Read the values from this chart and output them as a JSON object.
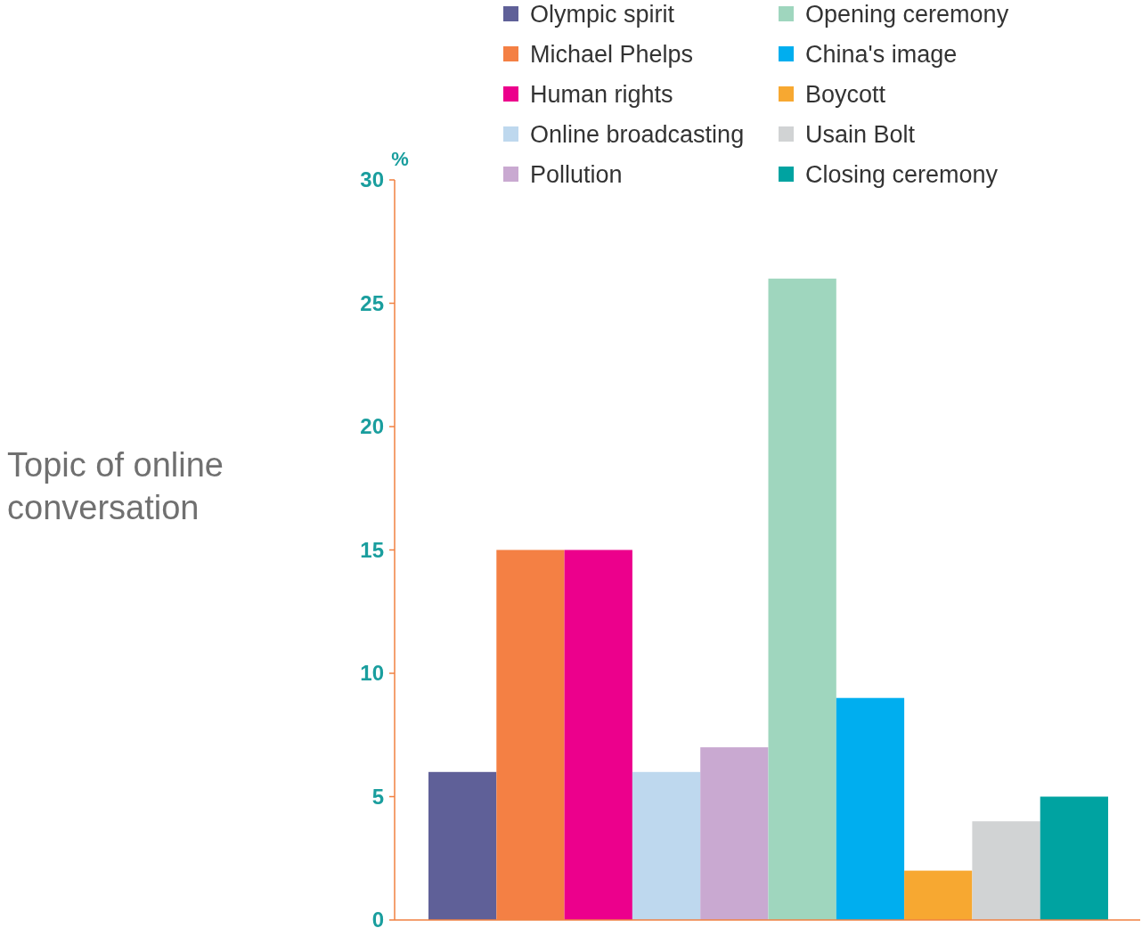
{
  "chart_data": {
    "type": "bar",
    "title": "Topic of online conversation",
    "ylabel": "%",
    "categories": [
      null,
      null,
      null,
      null,
      null,
      null,
      null,
      null,
      null,
      null
    ],
    "series": [
      {
        "name": "Olympic spirit",
        "color": "#5f6098",
        "values": [
          6,
          null,
          null,
          null,
          null,
          null,
          null,
          null,
          null,
          null
        ]
      },
      {
        "name": "Michael Phelps",
        "color": "#f48044",
        "values": [
          null,
          15,
          null,
          null,
          null,
          null,
          null,
          null,
          null,
          null
        ]
      },
      {
        "name": "Human rights",
        "color": "#ec008c",
        "values": [
          null,
          null,
          15,
          null,
          null,
          null,
          null,
          null,
          null,
          null
        ]
      },
      {
        "name": "Online broadcasting",
        "color": "#bed8ee",
        "values": [
          null,
          null,
          null,
          6,
          null,
          null,
          null,
          null,
          null,
          null
        ]
      },
      {
        "name": "Pollution",
        "color": "#c9a9d1",
        "values": [
          null,
          null,
          null,
          null,
          7,
          null,
          null,
          null,
          null,
          null
        ]
      },
      {
        "name": "Opening ceremony",
        "color": "#9fd6be",
        "values": [
          null,
          null,
          null,
          null,
          null,
          26,
          null,
          null,
          null,
          null
        ]
      },
      {
        "name": "China's image",
        "color": "#00aeef",
        "values": [
          null,
          null,
          null,
          null,
          null,
          null,
          9,
          null,
          null,
          null
        ]
      },
      {
        "name": "Boycott",
        "color": "#f7a831",
        "values": [
          null,
          null,
          null,
          null,
          null,
          null,
          null,
          2,
          null,
          null
        ]
      },
      {
        "name": "Usain Bolt",
        "color": "#d1d3d4",
        "values": [
          null,
          null,
          null,
          null,
          null,
          null,
          null,
          null,
          4,
          null
        ]
      },
      {
        "name": "Closing ceremony",
        "color": "#00a3a1",
        "values": [
          null,
          null,
          null,
          null,
          null,
          null,
          null,
          null,
          null,
          5
        ]
      }
    ],
    "ylim": [
      0,
      30
    ],
    "yticks": [
      0,
      5,
      10,
      15,
      20,
      25,
      30
    ],
    "grid": false,
    "legend": "top"
  }
}
